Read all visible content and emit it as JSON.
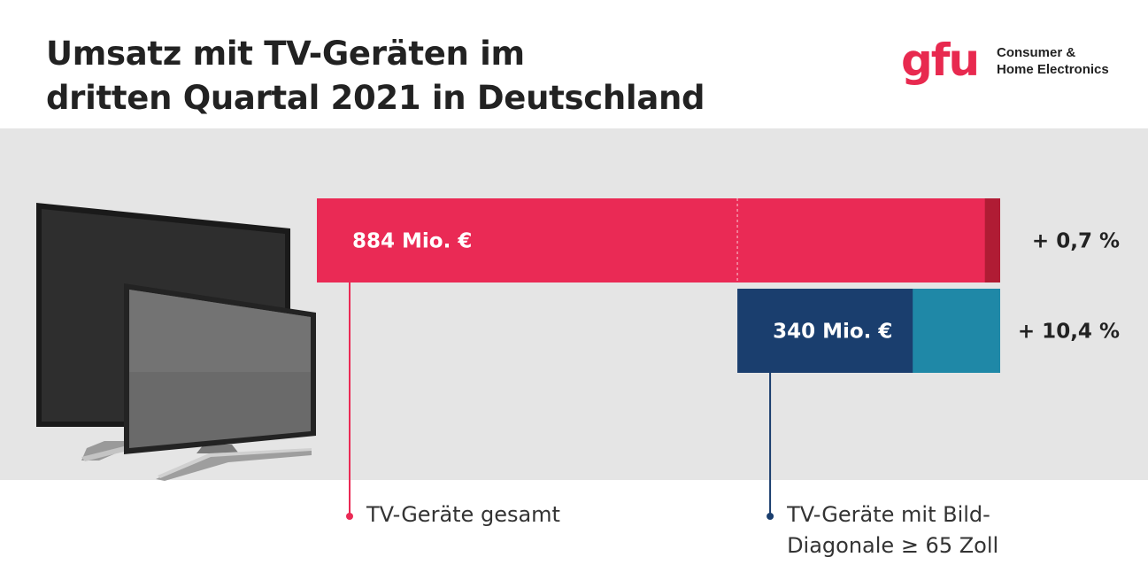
{
  "title": {
    "line1": "Umsatz mit TV-Geräten im",
    "line2": "dritten Quartal 2021 in Deutschland"
  },
  "logo": {
    "mark": "gfu",
    "line1": "Consumer &",
    "line2": "Home Electronics"
  },
  "colors": {
    "accent_red": "#ea2a55",
    "accent_red_dark": "#b01c34",
    "navy": "#1a3e6e",
    "teal": "#1f88a7",
    "band": "#e5e5e5"
  },
  "illustration": {
    "icon": "tv-sets-icon"
  },
  "chart_data": {
    "type": "bar",
    "orientation": "horizontal",
    "unit": "Mio. €",
    "series": [
      {
        "name": "TV-Geräte gesamt",
        "value": 884,
        "value_label": "884 Mio. €",
        "change_label": "+ 0,7 %",
        "change_pct": 0.7,
        "color": "#ea2a55",
        "growth_color": "#b01c34",
        "legend_lines": [
          "TV-Geräte gesamt"
        ]
      },
      {
        "name": "TV-Geräte mit Bild-Diagonale ≥ 65 Zoll",
        "value": 340,
        "value_label": "340 Mio. €",
        "change_label": "+ 10,4 %",
        "change_pct": 10.4,
        "color": "#1a3e6e",
        "growth_color": "#1f88a7",
        "legend_lines": [
          "TV-Geräte mit Bild-",
          "Diagonale ≥ 65 Zoll"
        ]
      }
    ]
  }
}
